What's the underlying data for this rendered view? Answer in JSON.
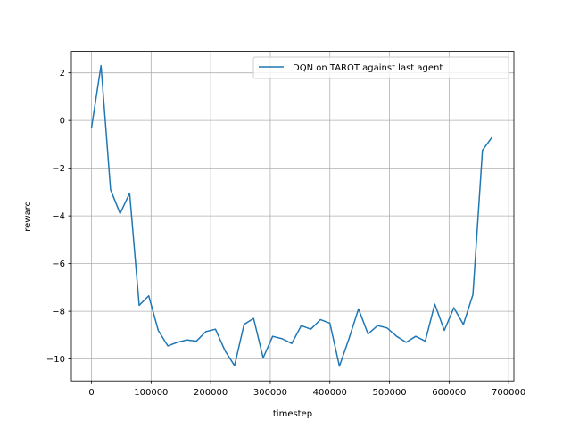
{
  "chart_data": {
    "type": "line",
    "title": "",
    "xlabel": "timestep",
    "ylabel": "reward",
    "xlim": [
      -33750,
      708750
    ],
    "ylim": [
      -10.92,
      2.9
    ],
    "grid": true,
    "legend_position": "top-right",
    "x_ticks": [
      0,
      100000,
      200000,
      300000,
      400000,
      500000,
      600000,
      700000
    ],
    "y_ticks": [
      -10,
      -8,
      -6,
      -4,
      -2,
      0,
      2
    ],
    "series": [
      {
        "name": "DQN on TAROT against last agent",
        "color": "#1f77b4",
        "x": [
          0,
          16000,
          32000,
          48000,
          64000,
          80000,
          96000,
          112000,
          128000,
          144000,
          160000,
          176000,
          192000,
          208000,
          224000,
          240000,
          256000,
          272000,
          288000,
          304000,
          320000,
          336000,
          352000,
          368000,
          384000,
          400000,
          416000,
          432000,
          448000,
          464000,
          480000,
          496000,
          512000,
          528000,
          544000,
          560000,
          576000,
          592000,
          608000,
          624000,
          640000,
          656000,
          672000
        ],
        "y": [
          -0.3,
          2.3,
          -2.9,
          -3.9,
          -3.05,
          -7.75,
          -7.35,
          -8.8,
          -9.45,
          -9.3,
          -9.2,
          -9.25,
          -8.85,
          -8.75,
          -9.65,
          -10.28,
          -8.55,
          -8.3,
          -9.95,
          -9.05,
          -9.15,
          -9.35,
          -8.6,
          -8.75,
          -8.35,
          -8.5,
          -10.3,
          -9.15,
          -7.9,
          -8.95,
          -8.6,
          -8.7,
          -9.05,
          -9.3,
          -9.05,
          -9.25,
          -7.7,
          -8.8,
          -7.85,
          -8.55,
          -7.3,
          -1.25,
          -0.7
        ]
      }
    ]
  }
}
